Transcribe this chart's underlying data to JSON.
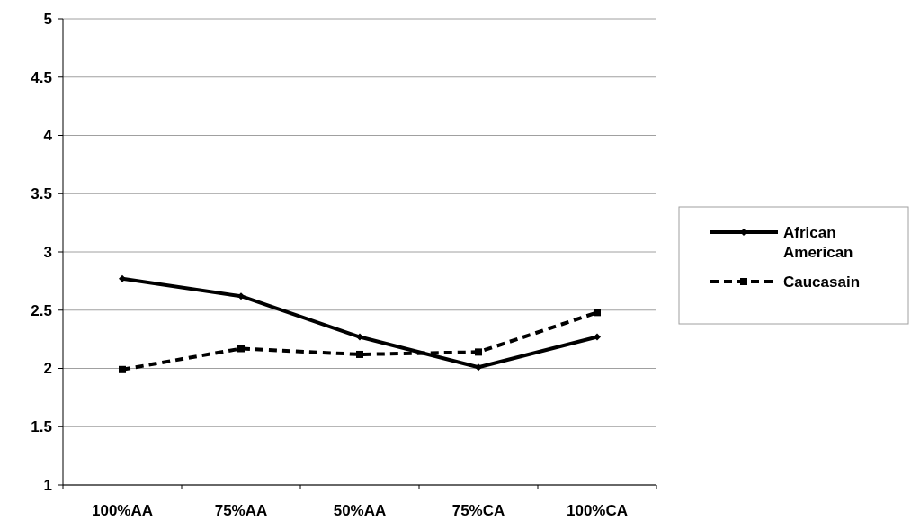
{
  "chart_data": {
    "type": "line",
    "categories": [
      "100%AA",
      "75%AA",
      "50%AA",
      "75%CA",
      "100%CA"
    ],
    "series": [
      {
        "name": "African American",
        "color": "#000000",
        "values": [
          2.77,
          2.62,
          2.27,
          2.01,
          2.27
        ],
        "marker": "diamond",
        "line_style": "solid"
      },
      {
        "name": "Caucasain",
        "color": "#000000",
        "values": [
          1.99,
          2.17,
          2.12,
          2.14,
          2.48
        ],
        "marker": "square",
        "line_style": "dashed"
      }
    ],
    "ylim": [
      1,
      5
    ],
    "yticks": [
      1,
      1.5,
      2,
      2.5,
      3,
      3.5,
      4,
      4.5,
      5
    ],
    "grid": "y",
    "legend": "right"
  }
}
